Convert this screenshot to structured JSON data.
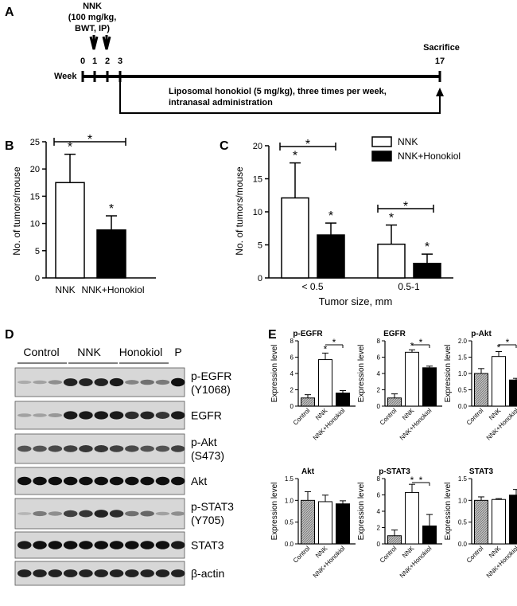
{
  "panel_labels": {
    "a": "A",
    "b": "B",
    "c": "C",
    "d": "D",
    "e": "E"
  },
  "timeline": {
    "treatment_label": [
      "NNK",
      "(100 mg/kg,",
      "BWT, IP)"
    ],
    "axis_label": "Week",
    "weeks": [
      "0",
      "1",
      "2",
      "3"
    ],
    "end_week": "17",
    "end_label": "Sacrifice",
    "regimen": [
      "Liposomal honokiol  (5 mg/kg), three times per week,",
      "intranasal administration"
    ]
  },
  "chart_data": [
    {
      "panel": "B",
      "type": "bar",
      "categories": [
        "NNK",
        "NNK+Honokiol"
      ],
      "values": [
        17.5,
        8.8
      ],
      "errors": [
        5.2,
        2.6
      ],
      "ylabel": "No. of tumors/mouse",
      "ylim": [
        0,
        25
      ],
      "yticks": [
        "0",
        "5",
        "10",
        "15",
        "20",
        "25"
      ],
      "fills": [
        "#ffffff",
        "#000000"
      ],
      "sig_marks": [
        "*",
        "*"
      ],
      "bracket_mark": "*"
    },
    {
      "panel": "C",
      "type": "bar",
      "xlabel": "Tumor size, mm",
      "ylabel": "No. of tumors/mouse",
      "ylim": [
        0,
        20
      ],
      "yticks": [
        "0",
        "5",
        "10",
        "15",
        "20"
      ],
      "groups": [
        "< 0.5",
        "0.5-1"
      ],
      "series": [
        {
          "name": "NNK",
          "values": [
            12.1,
            5.1
          ],
          "errors": [
            5.3,
            2.9
          ],
          "fill": "#ffffff"
        },
        {
          "name": "NNK+Honokiol",
          "values": [
            6.5,
            2.2
          ],
          "errors": [
            1.8,
            1.4
          ],
          "fill": "#000000"
        }
      ],
      "sig_marks": [
        "*",
        "*",
        "*",
        "*"
      ],
      "bracket_marks": [
        "*",
        "*"
      ]
    },
    {
      "panel": "E",
      "type": "bar",
      "title": "p-EGFR",
      "ylabel": "Expression level",
      "categories": [
        "Control",
        "NNK",
        "NNK+Honokiol"
      ],
      "values": [
        1.0,
        5.7,
        1.6
      ],
      "errors": [
        0.4,
        0.8,
        0.3
      ],
      "ylim": [
        0,
        8
      ],
      "yticks": [
        "0",
        "2",
        "4",
        "6",
        "8"
      ],
      "sig_marks": [
        "",
        "*",
        ""
      ],
      "bracket_mark": "*"
    },
    {
      "panel": "E",
      "type": "bar",
      "title": "EGFR",
      "ylabel": "Expression level",
      "categories": [
        "Control",
        "NNK",
        "NNK+Honokiol"
      ],
      "values": [
        1.0,
        6.6,
        4.7
      ],
      "errors": [
        0.5,
        0.3,
        0.2
      ],
      "ylim": [
        0,
        8
      ],
      "yticks": [
        "0",
        "2",
        "4",
        "6",
        "8"
      ],
      "sig_marks": [
        "",
        "*",
        ""
      ],
      "bracket_mark": "*"
    },
    {
      "panel": "E",
      "type": "bar",
      "title": "p-Akt",
      "ylabel": "Expression level",
      "categories": [
        "Control",
        "NNK",
        "NNK+Honokiol"
      ],
      "values": [
        1.0,
        1.52,
        0.8
      ],
      "errors": [
        0.15,
        0.15,
        0.05
      ],
      "ylim": [
        0,
        2.0
      ],
      "yticks": [
        "0.0",
        "0.5",
        "1.0",
        "1.5",
        "2.0"
      ],
      "sig_marks": [
        "",
        "*",
        ""
      ],
      "bracket_mark": "*"
    },
    {
      "panel": "E",
      "type": "bar",
      "title": "Akt",
      "ylabel": "Expression level",
      "categories": [
        "Control",
        "NNK",
        "NNK+Honokiol"
      ],
      "values": [
        1.0,
        0.97,
        0.92
      ],
      "errors": [
        0.2,
        0.15,
        0.07
      ],
      "ylim": [
        0,
        1.5
      ],
      "yticks": [
        "0.0",
        "0.5",
        "1.0",
        "1.5"
      ],
      "sig_marks": [
        "",
        "",
        ""
      ],
      "bracket_mark": ""
    },
    {
      "panel": "E",
      "type": "bar",
      "title": "p-STAT3",
      "ylabel": "Expression level",
      "categories": [
        "Control",
        "NNK",
        "NNK+Honokiol"
      ],
      "values": [
        1.0,
        6.3,
        2.2
      ],
      "errors": [
        0.7,
        1.0,
        1.4
      ],
      "ylim": [
        0,
        8
      ],
      "yticks": [
        "0",
        "2",
        "4",
        "6",
        "8"
      ],
      "sig_marks": [
        "",
        "*",
        ""
      ],
      "bracket_mark": "*"
    },
    {
      "panel": "E",
      "type": "bar",
      "title": "STAT3",
      "ylabel": "Expression level",
      "categories": [
        "Control",
        "NNK",
        "NNK+Honokiol"
      ],
      "values": [
        1.0,
        1.02,
        1.12
      ],
      "errors": [
        0.08,
        0.02,
        0.13
      ],
      "ylim": [
        0,
        1.5
      ],
      "yticks": [
        "0.0",
        "0.5",
        "1.0",
        "1.5"
      ],
      "sig_marks": [
        "",
        "",
        ""
      ],
      "bracket_mark": ""
    }
  ],
  "legend_c": {
    "items": [
      "NNK",
      "NNK+Honokiol"
    ]
  },
  "blot": {
    "groups": [
      "Control",
      "NNK",
      "Honokiol",
      "P"
    ],
    "rows": [
      {
        "label": "p-EGFR",
        "sub": "(Y1068)",
        "lanes": [
          0.15,
          0.2,
          0.3,
          0.85,
          0.85,
          0.85,
          0.9,
          0.35,
          0.45,
          0.4,
          0.95
        ]
      },
      {
        "label": "EGFR",
        "sub": "",
        "lanes": [
          0.2,
          0.2,
          0.25,
          0.9,
          0.9,
          0.9,
          0.9,
          0.8,
          0.85,
          0.75,
          0.9
        ]
      },
      {
        "label": "p-Akt",
        "sub": "(S473)",
        "lanes": [
          0.6,
          0.6,
          0.65,
          0.7,
          0.75,
          0.75,
          0.7,
          0.65,
          0.6,
          0.6,
          0.7
        ]
      },
      {
        "label": "Akt",
        "sub": "",
        "lanes": [
          0.95,
          0.95,
          0.95,
          0.95,
          0.95,
          0.95,
          0.95,
          0.95,
          0.95,
          0.95,
          0.95
        ]
      },
      {
        "label": "p-STAT3",
        "sub": "(Y705)",
        "lanes": [
          0.1,
          0.4,
          0.3,
          0.7,
          0.75,
          0.85,
          0.8,
          0.45,
          0.5,
          0.2,
          0.3
        ]
      },
      {
        "label": "STAT3",
        "sub": "",
        "lanes": [
          0.9,
          0.95,
          0.95,
          0.95,
          0.95,
          0.95,
          0.95,
          0.95,
          0.95,
          0.95,
          0.9
        ]
      },
      {
        "label": "β-actin",
        "sub": "",
        "lanes": [
          0.85,
          0.85,
          0.85,
          0.85,
          0.85,
          0.85,
          0.85,
          0.85,
          0.85,
          0.85,
          0.85
        ]
      }
    ]
  }
}
